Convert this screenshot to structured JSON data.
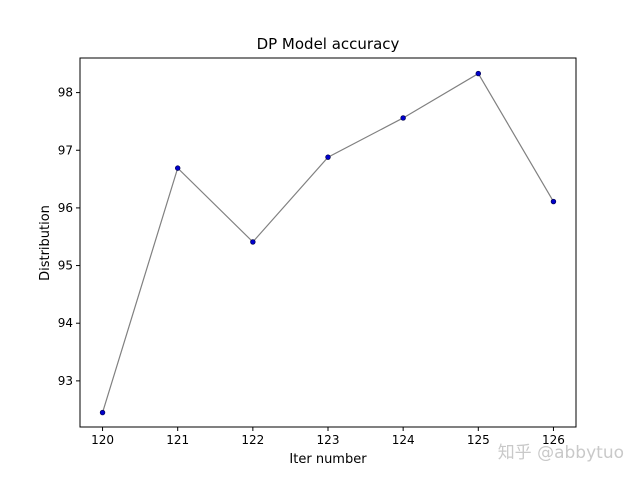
{
  "chart_data": {
    "type": "line",
    "title": "DP Model accuracy",
    "xlabel": "Iter number",
    "ylabel": "Distribution",
    "x": [
      120,
      121,
      122,
      123,
      124,
      125,
      126
    ],
    "xticks": [
      "120",
      "121",
      "122",
      "123",
      "124",
      "125",
      "126"
    ],
    "yticks": [
      "93",
      "94",
      "95",
      "96",
      "97",
      "98"
    ],
    "xlim": [
      119.7,
      126.3
    ],
    "ylim": [
      92.2,
      98.6
    ],
    "series": [
      {
        "values": [
          92.45,
          96.69,
          95.41,
          96.88,
          97.56,
          98.33,
          96.11
        ],
        "line_color": "#808080",
        "marker_color": "#0000cc"
      }
    ],
    "grid": false,
    "legend": "none"
  },
  "watermark": "知乎 @abbytuo"
}
